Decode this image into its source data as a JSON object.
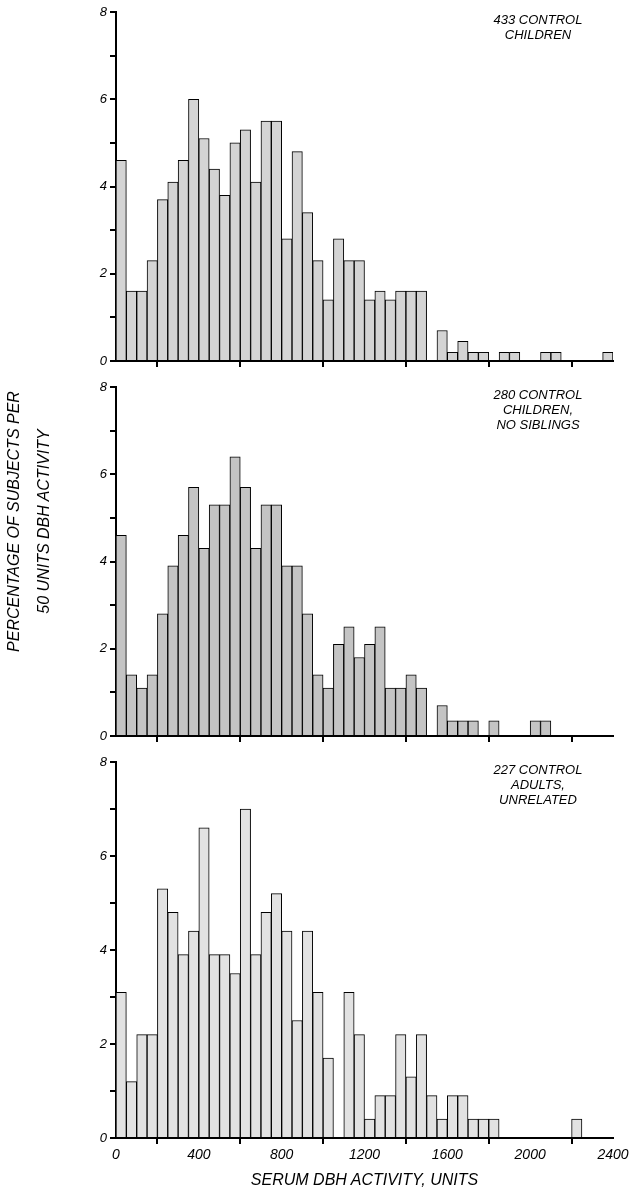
{
  "chart_data": [
    {
      "type": "histogram",
      "bins": [
        0,
        50,
        100,
        150,
        200,
        250,
        300,
        350,
        400,
        450,
        500,
        550,
        600,
        650,
        700,
        750,
        800,
        850,
        900,
        950,
        1000,
        1050,
        1100,
        1150,
        1200,
        1250,
        1300,
        1350,
        1400,
        1450,
        1500,
        1550,
        1600,
        1650,
        1700,
        1750,
        1800,
        1850,
        1900,
        1950,
        2000,
        2050,
        2100,
        2150,
        2200,
        2250,
        2300,
        2350,
        2400
      ],
      "values": [
        4.6,
        1.6,
        1.6,
        2.3,
        3.7,
        4.1,
        4.6,
        6.0,
        5.1,
        4.4,
        3.8,
        5.0,
        5.3,
        4.1,
        5.5,
        5.5,
        2.8,
        4.8,
        3.4,
        2.3,
        1.4,
        2.8,
        2.3,
        2.3,
        1.4,
        1.6,
        1.4,
        1.6,
        1.6,
        1.6,
        0,
        0.7,
        0.2,
        0.45,
        0.2,
        0.2,
        0,
        0.2,
        0.2,
        0,
        0,
        0.2,
        0.2,
        0,
        0,
        0,
        0,
        0.2
      ],
      "color": "#d4d4d4",
      "xlim": [
        0,
        2400
      ],
      "xticks": [
        {
          "value": 0,
          "label": null
        },
        {
          "value": 400,
          "label": null
        },
        {
          "value": 800,
          "label": null
        },
        {
          "value": 1200,
          "label": null
        },
        {
          "value": 1600,
          "label": null
        },
        {
          "value": 2000,
          "label": null
        },
        {
          "value": 2400,
          "label": null
        }
      ],
      "ylim": [
        0,
        8
      ],
      "yticks": [
        0,
        {
          "value": 1,
          "label": null
        },
        2,
        {
          "value": 3,
          "label": null
        },
        4,
        {
          "value": 5,
          "label": null
        },
        6,
        {
          "value": 7,
          "label": null
        },
        8
      ],
      "tick_labels": "y",
      "grid": false,
      "legend": false,
      "annotations": [
        "433 CONTROL\nCHILDREN"
      ]
    },
    {
      "type": "histogram",
      "bins": [
        0,
        50,
        100,
        150,
        200,
        250,
        300,
        350,
        400,
        450,
        500,
        550,
        600,
        650,
        700,
        750,
        800,
        850,
        900,
        950,
        1000,
        1050,
        1100,
        1150,
        1200,
        1250,
        1300,
        1350,
        1400,
        1450,
        1500,
        1550,
        1600,
        1650,
        1700,
        1750,
        1800,
        1850,
        1900,
        1950,
        2000,
        2050,
        2100,
        2150,
        2200,
        2250,
        2300,
        2350,
        2400
      ],
      "values": [
        4.6,
        1.4,
        1.1,
        1.4,
        2.8,
        3.9,
        4.6,
        5.7,
        4.3,
        5.3,
        5.3,
        6.4,
        5.7,
        4.3,
        5.3,
        5.3,
        3.9,
        3.9,
        2.8,
        1.4,
        1.1,
        2.1,
        2.5,
        1.8,
        2.1,
        2.5,
        1.1,
        1.1,
        1.4,
        1.1,
        0,
        0.7,
        0.35,
        0.35,
        0.35,
        0,
        0.35,
        0,
        0,
        0,
        0.35,
        0.35,
        0,
        0,
        0,
        0,
        0,
        0
      ],
      "color": "#c4c4c4",
      "xlim": [
        0,
        2400
      ],
      "xticks": [
        {
          "value": 0,
          "label": null
        },
        {
          "value": 400,
          "label": null
        },
        {
          "value": 800,
          "label": null
        },
        {
          "value": 1200,
          "label": null
        },
        {
          "value": 1600,
          "label": null
        },
        {
          "value": 2000,
          "label": null
        },
        {
          "value": 2400,
          "label": null
        }
      ],
      "ylim": [
        0,
        8
      ],
      "yticks": [
        0,
        {
          "value": 1,
          "label": null
        },
        2,
        {
          "value": 3,
          "label": null
        },
        4,
        {
          "value": 5,
          "label": null
        },
        6,
        {
          "value": 7,
          "label": null
        },
        8
      ],
      "tick_labels": "y",
      "grid": false,
      "legend": false,
      "ylabel": "PERCENTAGE OF SUBJECTS PER\n50 UNITS DBH ACTIVITY",
      "annotations": [
        "280 CONTROL\nCHILDREN,\nNO SIBLINGS"
      ]
    },
    {
      "type": "histogram",
      "bins": [
        0,
        50,
        100,
        150,
        200,
        250,
        300,
        350,
        400,
        450,
        500,
        550,
        600,
        650,
        700,
        750,
        800,
        850,
        900,
        950,
        1000,
        1050,
        1100,
        1150,
        1200,
        1250,
        1300,
        1350,
        1400,
        1450,
        1500,
        1550,
        1600,
        1650,
        1700,
        1750,
        1800,
        1850,
        1900,
        1950,
        2000,
        2050,
        2100,
        2150,
        2200,
        2250,
        2300,
        2350,
        2400
      ],
      "values": [
        3.1,
        1.2,
        2.2,
        2.2,
        5.3,
        4.8,
        3.9,
        4.4,
        6.6,
        3.9,
        3.9,
        3.5,
        7.0,
        3.9,
        4.8,
        5.2,
        4.4,
        2.5,
        4.4,
        3.1,
        1.7,
        0,
        3.1,
        2.2,
        0.4,
        0.9,
        0.9,
        2.2,
        1.3,
        2.2,
        0.9,
        0.4,
        0.9,
        0.9,
        0.4,
        0.4,
        0.4,
        0,
        0,
        0,
        0,
        0,
        0,
        0,
        0.4,
        0,
        0,
        0
      ],
      "color": "#e2e2e2",
      "xlim": [
        0,
        2400
      ],
      "xticks": [
        0,
        400,
        800,
        1200,
        1600,
        2000,
        2400
      ],
      "ylim": [
        0,
        8
      ],
      "yticks": [
        0,
        {
          "value": 1,
          "label": null
        },
        2,
        {
          "value": 3,
          "label": null
        },
        4,
        {
          "value": 5,
          "label": null
        },
        6,
        {
          "value": 7,
          "label": null
        },
        8
      ],
      "grid": false,
      "legend": false,
      "xlabel": "SERUM DBH ACTIVITY, UNITS",
      "annotations": [
        "227 CONTROL\nADULTS,\nUNRELATED"
      ]
    }
  ]
}
